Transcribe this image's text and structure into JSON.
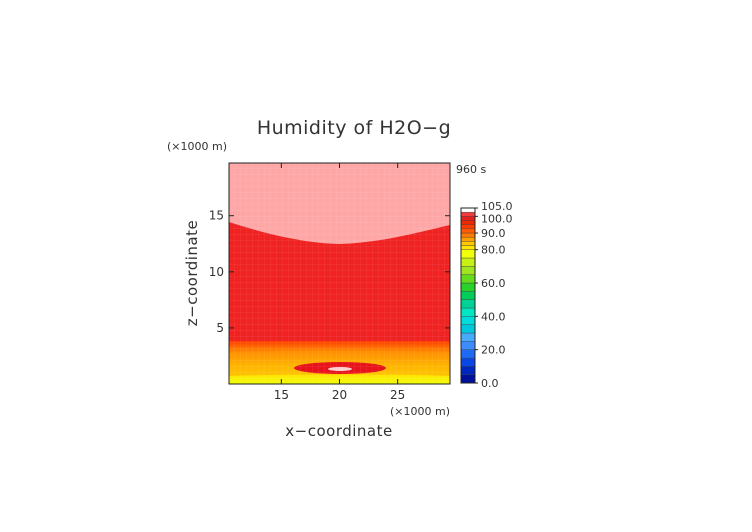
{
  "chart_data": {
    "type": "heatmap",
    "title": "Humidity of H2O−g",
    "time_label": "960 s",
    "xlabel": "x−coordinate",
    "ylabel": "z−coordinate",
    "x_unit": "(×1000 m)",
    "y_unit": "(×1000 m)",
    "xlim": [
      10.5,
      29.5
    ],
    "ylim": [
      0,
      19.7
    ],
    "x_ticks": [
      15,
      20,
      25
    ],
    "y_ticks": [
      5,
      10,
      15
    ],
    "x_tick_labels": [
      "15",
      "20",
      "25"
    ],
    "y_tick_labels": [
      "5",
      "10",
      "15"
    ],
    "colorbar": {
      "ticks": [
        0,
        20,
        40,
        60,
        80,
        90,
        100,
        105
      ],
      "tick_labels": [
        "0.0",
        "20.0",
        "40.0",
        "60.0",
        "80.0",
        "90.0",
        "100.0",
        "105.0"
      ],
      "levels": [
        0,
        5,
        10,
        15,
        20,
        25,
        30,
        35,
        40,
        45,
        50,
        55,
        60,
        65,
        70,
        75,
        80,
        82.5,
        85,
        87.5,
        90,
        92.5,
        95,
        97.5,
        100,
        102.5,
        105
      ],
      "colors": [
        "#00109a",
        "#0026c2",
        "#0a46e6",
        "#1e6af5",
        "#3c8cff",
        "#46aaff",
        "#00c8dc",
        "#00dcdc",
        "#00e6c0",
        "#00d296",
        "#00cd5a",
        "#28d228",
        "#64dc1e",
        "#a0e61e",
        "#c8f014",
        "#f0ff0a",
        "#ffe600",
        "#ffc800",
        "#ffa000",
        "#ff7800",
        "#ff5a00",
        "#ff3c00",
        "#f02800",
        "#e61e1e",
        "#f03c3c",
        "#ffffff"
      ]
    },
    "regions": [
      {
        "name": "upper-moist-layer",
        "value_range": [
          100,
          102.5
        ],
        "z_range_center_top": [
          12.5,
          19.7
        ]
      },
      {
        "name": "main-layer",
        "value_range": [
          95,
          100
        ],
        "z_range": [
          3.8,
          14.7
        ]
      },
      {
        "name": "lower-gradient-layer",
        "value_range": [
          80,
          95
        ],
        "z_range": [
          0,
          3.8
        ]
      },
      {
        "name": "moist-lens",
        "value_range": [
          97.5,
          100
        ],
        "center": [
          20,
          1.5
        ]
      }
    ]
  }
}
